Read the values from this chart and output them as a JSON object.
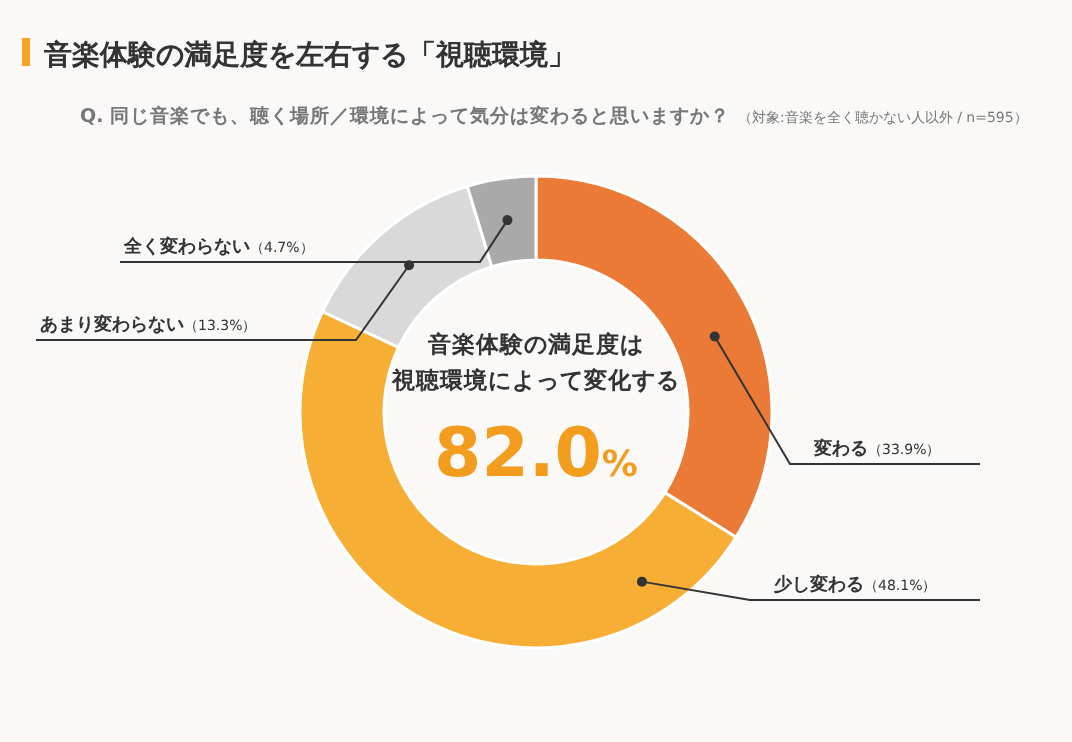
{
  "chart_data": {
    "type": "donut",
    "title": "音楽体験の満足度を左右する「視聴環境」",
    "subtitle": "Q. 同じ音楽でも、聴く場所／環境によって気分は変わると思いますか？",
    "annotations": [
      "（対象:音楽を全く聴かない人以外 / n=595）",
      "音楽体験の満足度は",
      "視聴環境によって変化する",
      "82.0%"
    ],
    "categories": [
      "変わる",
      "少し変わる",
      "あまり変わらない",
      "全く変わらない"
    ],
    "values": [
      33.9,
      48.1,
      13.3,
      4.7
    ],
    "value_labels": [
      "（33.9%）",
      "（48.1%）",
      "（13.3%）",
      "（4.7%）"
    ],
    "colors": [
      "#ea7a35",
      "#f7ae35",
      "#d9d9d9",
      "#a9a9a9"
    ]
  }
}
